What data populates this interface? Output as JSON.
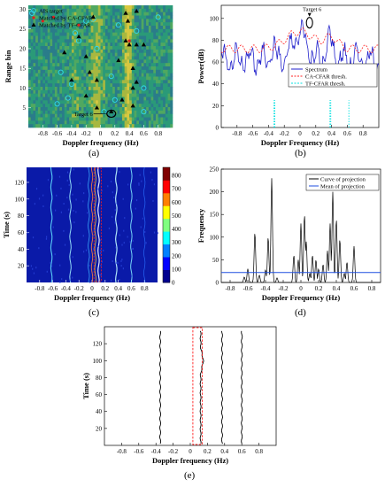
{
  "chart_data": [
    {
      "id": "a",
      "type": "heatmap",
      "caption": "(a)",
      "xlabel": "Doppler frequency (Hz)",
      "ylabel": "Range bin",
      "xlim": [
        -1.0,
        1.0
      ],
      "ylim": [
        0,
        31
      ],
      "xticks": [
        "-0.8",
        "-0.6",
        "-0.4",
        "-0.2",
        "0",
        "0.2",
        "0.4",
        "0.6",
        "0.8"
      ],
      "yticks": [
        "5",
        "10",
        "15",
        "20",
        "25",
        "30"
      ],
      "legend": [
        "AIS target",
        "Matched by CA-CFAR",
        "Matched by TF-CFAR"
      ],
      "annotation": "Target 6",
      "ais_targets": [
        [
          -0.95,
          29
        ],
        [
          -0.2,
          27
        ],
        [
          -0.35,
          24
        ],
        [
          -0.3,
          22
        ],
        [
          -0.1,
          27.5
        ],
        [
          0.25,
          26
        ],
        [
          0.5,
          24.5
        ],
        [
          0.8,
          28
        ],
        [
          -0.05,
          20
        ],
        [
          -0.55,
          14
        ],
        [
          -0.4,
          11
        ],
        [
          0.6,
          10
        ],
        [
          0.15,
          13
        ],
        [
          -0.6,
          6
        ],
        [
          0.2,
          7
        ],
        [
          0.05,
          4
        ],
        [
          0.6,
          4
        ],
        [
          -0.45,
          7.5
        ]
      ],
      "ca_cfar": [
        [
          -0.8,
          27
        ],
        [
          -0.65,
          28
        ],
        [
          -0.3,
          26
        ],
        [
          0.4,
          22
        ]
      ],
      "tf_cfar": [
        [
          -0.1,
          28
        ],
        [
          0.35,
          29
        ],
        [
          0.5,
          29.5
        ],
        [
          0.38,
          27
        ],
        [
          -0.3,
          23
        ],
        [
          0.35,
          22
        ],
        [
          0.4,
          21
        ],
        [
          0.5,
          21
        ],
        [
          0.6,
          21
        ],
        [
          -0.5,
          19
        ],
        [
          -0.2,
          18
        ],
        [
          0.25,
          17
        ],
        [
          0.45,
          15
        ],
        [
          -0.15,
          14
        ],
        [
          -0.4,
          12
        ],
        [
          -0.05,
          12
        ],
        [
          0.5,
          11.5
        ],
        [
          0.45,
          10
        ],
        [
          -0.2,
          8
        ],
        [
          0.3,
          7
        ],
        [
          0.45,
          5.5
        ],
        [
          -0.05,
          5
        ],
        [
          0.15,
          4
        ]
      ],
      "target6": [
        0.15,
        3.5
      ]
    },
    {
      "id": "b",
      "type": "line",
      "caption": "(b)",
      "xlabel": "Doppler Frequency (Hz)",
      "ylabel": "Power(dB)",
      "xlim": [
        -1.0,
        1.0
      ],
      "ylim": [
        0,
        112
      ],
      "xticks": [
        "-0.8",
        "-0.6",
        "-0.4",
        "-0.2",
        "0",
        "0.2",
        "0.4",
        "0.6",
        "0.8"
      ],
      "yticks": [
        "0",
        "20",
        "40",
        "60",
        "80",
        "100"
      ],
      "series": [
        {
          "name": "Spectrum",
          "color": "#2222cc"
        },
        {
          "name": "CA-CFAR thresh.",
          "color": "#ff2020"
        },
        {
          "name": "TF-CFAR thresh.",
          "color": "#00e0e0"
        }
      ],
      "annotation": "Target 6",
      "target6": [
        0.12,
        96
      ]
    },
    {
      "id": "c",
      "type": "heatmap",
      "caption": "(c)",
      "xlabel": "Doppler frequency (Hz)",
      "ylabel": "Time (s)",
      "xlim": [
        -1.0,
        1.0
      ],
      "ylim": [
        0,
        138
      ],
      "xticks": [
        "-0.8",
        "-0.6",
        "-0.4",
        "-0.2",
        "0",
        "0.2",
        "0.4",
        "0.6",
        "0.8"
      ],
      "yticks": [
        "20",
        "40",
        "60",
        "80",
        "100",
        "120"
      ],
      "colorbar": [
        "0",
        "100",
        "200",
        "300",
        "400",
        "500",
        "600",
        "700",
        "800"
      ],
      "colorbar_range": [
        0,
        860
      ]
    },
    {
      "id": "d",
      "type": "line",
      "caption": "(d)",
      "xlabel": "Doppler Frequency (Hz)",
      "ylabel": "Frequency",
      "xlim": [
        -0.9,
        0.9
      ],
      "ylim": [
        0,
        250
      ],
      "xticks": [
        "-0.8",
        "-0.6",
        "-0.4",
        "-0.2",
        "0",
        "0.2",
        "0.4",
        "0.6",
        "0.8"
      ],
      "yticks": [
        "0",
        "50",
        "100",
        "150",
        "200",
        "250"
      ],
      "series": [
        {
          "name": "Curve of projection",
          "color": "#000000"
        },
        {
          "name": "Mean of projection",
          "color": "#1f4fe0"
        }
      ],
      "mean": 22,
      "peaks": [
        [
          -0.64,
          12
        ],
        [
          -0.6,
          30
        ],
        [
          -0.52,
          110
        ],
        [
          -0.47,
          16
        ],
        [
          -0.4,
          28
        ],
        [
          -0.37,
          100
        ],
        [
          -0.33,
          230
        ],
        [
          -0.27,
          10
        ],
        [
          -0.08,
          60
        ],
        [
          -0.03,
          50
        ],
        [
          0.0,
          130
        ],
        [
          0.04,
          150
        ],
        [
          0.06,
          90
        ],
        [
          0.1,
          20
        ],
        [
          0.13,
          60
        ],
        [
          0.17,
          50
        ],
        [
          0.2,
          30
        ],
        [
          0.25,
          40
        ],
        [
          0.3,
          70
        ],
        [
          0.33,
          130
        ],
        [
          0.36,
          200
        ],
        [
          0.4,
          140
        ],
        [
          0.44,
          95
        ],
        [
          0.49,
          20
        ],
        [
          0.52,
          45
        ],
        [
          0.6,
          80
        ]
      ]
    },
    {
      "id": "e",
      "type": "line",
      "caption": "(e)",
      "xlabel": "Doppler frequency (Hz)",
      "ylabel": "Time (s)",
      "xlim": [
        -1.0,
        1.0
      ],
      "ylim": [
        0,
        140
      ],
      "xticks": [
        "-0.8",
        "-0.6",
        "-0.4",
        "-0.2",
        "0",
        "0.2",
        "0.4",
        "0.6",
        "0.8"
      ],
      "yticks": [
        "20",
        "40",
        "60",
        "80",
        "100",
        "120"
      ],
      "tracks": [
        -0.35,
        0.12,
        0.37,
        0.6
      ],
      "dashed_band": [
        0.03,
        0.14
      ]
    }
  ]
}
